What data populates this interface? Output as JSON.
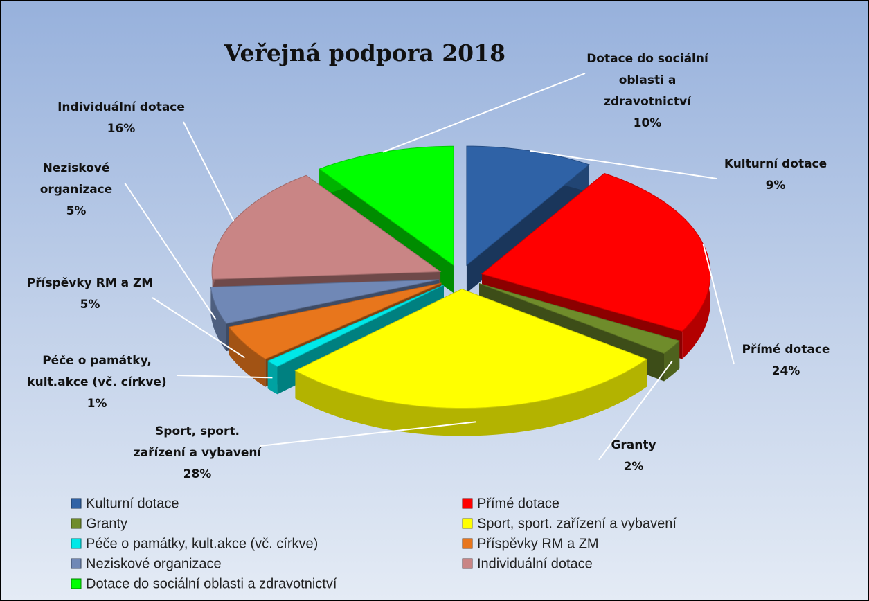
{
  "chart_data": {
    "type": "pie",
    "title": "Veřejná podpora 2018",
    "categories": [
      "Kulturní dotace",
      "Přímé dotace",
      "Granty",
      "Sport, sport. zařízení a vybavení",
      "Péče o památky, kult.akce (vč. církve)",
      "Příspěvky RM a ZM",
      "Neziskové organizace",
      "Individuální dotace",
      "Dotace do sociální oblasti a zdravotnictví"
    ],
    "values": [
      9,
      24,
      2,
      28,
      1,
      5,
      5,
      16,
      10
    ],
    "value_labels": [
      "9%",
      "24%",
      "2%",
      "28%",
      "1%",
      "5%",
      "5%",
      "16%",
      "10%"
    ],
    "colors": [
      "#2f62a6",
      "#ff0000",
      "#6f8c2b",
      "#ffff00",
      "#00e8e8",
      "#e8761c",
      "#7088b6",
      "#c98585",
      "#00ff00"
    ]
  }
}
